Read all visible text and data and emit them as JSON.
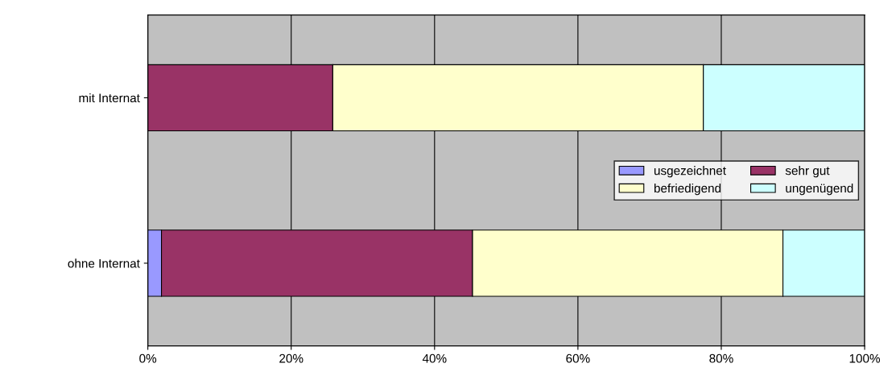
{
  "chart_data": {
    "type": "bar",
    "orientation": "horizontal",
    "stacked": true,
    "categories": [
      "mit Internat",
      "ohne Internat"
    ],
    "series": [
      {
        "name": "usgezeichnet",
        "color": "#9999ff",
        "values": [
          null,
          1.9
        ]
      },
      {
        "name": "sehr gut",
        "color": "#993366",
        "values": [
          25.8,
          43.4
        ]
      },
      {
        "name": "befriedigend",
        "color": "#ffffcc",
        "values": [
          51.7,
          43.3
        ]
      },
      {
        "name": "ungenügend",
        "color": "#ccffff",
        "values": [
          22.5,
          11.4
        ]
      }
    ],
    "xlim": [
      0,
      100
    ],
    "xticks": [
      {
        "value": 0,
        "label": "0%"
      },
      {
        "value": 20,
        "label": "20%"
      },
      {
        "value": 40,
        "label": "40%"
      },
      {
        "value": 60,
        "label": "60%"
      },
      {
        "value": 80,
        "label": "80%"
      },
      {
        "value": 100,
        "label": "100%"
      }
    ],
    "grid": "x",
    "legend": "right"
  }
}
